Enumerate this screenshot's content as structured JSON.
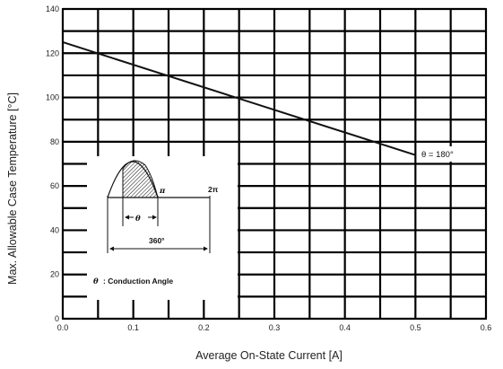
{
  "chart_data": {
    "type": "line",
    "xlabel": "Average On-State Current [A]",
    "ylabel": "Max. Allowable Case Temperature [°C]",
    "xlim": [
      0.0,
      0.6
    ],
    "ylim": [
      0,
      140
    ],
    "x_ticks": [
      "0.0",
      "0.1",
      "0.2",
      "0.3",
      "0.4",
      "0.5",
      "0.6"
    ],
    "y_ticks": [
      "0",
      "20",
      "40",
      "60",
      "80",
      "100",
      "120",
      "140"
    ],
    "x_minor_step": 0.05,
    "y_minor_step": 10,
    "grid": true,
    "series": [
      {
        "name": "θ = 180°",
        "x": [
          0.0,
          0.5
        ],
        "y": [
          125,
          74
        ]
      }
    ],
    "annotations": {
      "series_label": "θ = 180°",
      "inset": {
        "pi_label": "π",
        "two_pi_label": "2π",
        "theta_label": "θ",
        "span_label": "360°",
        "caption_symbol": "θ",
        "caption_text": ": Conduction Angle"
      }
    }
  }
}
